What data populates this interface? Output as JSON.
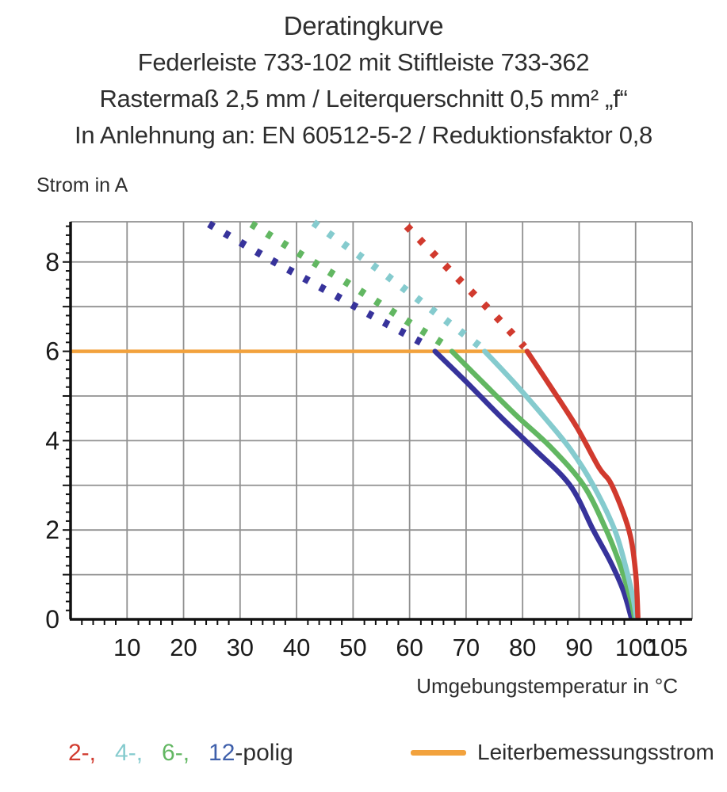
{
  "title": {
    "line1": "Deratingkurve",
    "line2": "Federleiste 733-102 mit Stiftleiste 733-362",
    "line3": "Rastermaß 2,5 mm / Leiterquerschnitt 0,5 mm² „f“",
    "line4": "In Anlehnung an: EN 60512-5-2 / Reduktionsfaktor 0,8"
  },
  "chart_data": {
    "type": "line",
    "title": "Deratingkurve",
    "xlabel": "Umgebungstemperatur in °C",
    "ylabel": "Strom in A",
    "xlim": [
      0,
      110
    ],
    "ylim": [
      0,
      8.9
    ],
    "grid": true,
    "x_grid_step": 10,
    "y_grid_step": 1,
    "x_minor_tick_step": 2,
    "y_minor_tick_step": 0.2,
    "x_tick_labels": [
      {
        "value": 10,
        "label": "10"
      },
      {
        "value": 20,
        "label": "20"
      },
      {
        "value": 30,
        "label": "30"
      },
      {
        "value": 40,
        "label": "40"
      },
      {
        "value": 50,
        "label": "50"
      },
      {
        "value": 60,
        "label": "60"
      },
      {
        "value": 70,
        "label": "70"
      },
      {
        "value": 80,
        "label": "80"
      },
      {
        "value": 90,
        "label": "90"
      },
      {
        "value": 100,
        "label": "100"
      },
      {
        "value": 105.6,
        "label": "105"
      }
    ],
    "y_tick_labels": [
      {
        "value": 0,
        "label": "0"
      },
      {
        "value": 2,
        "label": "2"
      },
      {
        "value": 4,
        "label": "4"
      },
      {
        "value": 6,
        "label": "6"
      },
      {
        "value": 8,
        "label": "8"
      }
    ],
    "reference_line": {
      "label": "Leiterbemessungsstrom",
      "y": 6,
      "x_start": 0,
      "x_end": 80.5,
      "color": "#f2a23d"
    },
    "series": [
      {
        "name": "12-polig",
        "color": "#37339b",
        "dashed": [
          [
            24.5,
            8.85
          ],
          [
            34,
            8.15
          ],
          [
            44,
            7.45
          ],
          [
            54,
            6.75
          ],
          [
            63.8,
            6.08
          ]
        ],
        "solid": [
          [
            64.5,
            6.0
          ],
          [
            70,
            5.32
          ],
          [
            76,
            4.55
          ],
          [
            82,
            3.82
          ],
          [
            88.4,
            3.0
          ],
          [
            92.5,
            2.0
          ],
          [
            95.5,
            1.3
          ],
          [
            97.8,
            0.65
          ],
          [
            99.2,
            0.05
          ]
        ]
      },
      {
        "name": "6-polig",
        "color": "#62b762",
        "dashed": [
          [
            32,
            8.85
          ],
          [
            41,
            8.15
          ],
          [
            50,
            7.45
          ],
          [
            59,
            6.72
          ],
          [
            67,
            6.08
          ]
        ],
        "solid": [
          [
            67.5,
            6.0
          ],
          [
            73,
            5.3
          ],
          [
            79,
            4.55
          ],
          [
            85,
            3.85
          ],
          [
            90.8,
            3.0
          ],
          [
            94.8,
            2.0
          ],
          [
            97.3,
            1.2
          ],
          [
            99,
            0.5
          ],
          [
            99.8,
            0.05
          ]
        ]
      },
      {
        "name": "4-polig",
        "color": "#85cbce",
        "dashed": [
          [
            43,
            8.88
          ],
          [
            50.5,
            8.2
          ],
          [
            58,
            7.5
          ],
          [
            65.5,
            6.78
          ],
          [
            72.8,
            6.08
          ]
        ],
        "solid": [
          [
            73.3,
            6.0
          ],
          [
            78.5,
            5.3
          ],
          [
            84,
            4.5
          ],
          [
            88.5,
            3.8
          ],
          [
            92.5,
            3.0
          ],
          [
            96.3,
            2.0
          ],
          [
            98.3,
            1.15
          ],
          [
            99.6,
            0.45
          ],
          [
            100.1,
            0.05
          ]
        ]
      },
      {
        "name": "2-polig",
        "color": "#d13a2e",
        "dashed": [
          [
            59.5,
            8.8
          ],
          [
            64.5,
            8.15
          ],
          [
            70,
            7.45
          ],
          [
            75.3,
            6.78
          ],
          [
            80.3,
            6.1
          ]
        ],
        "solid": [
          [
            80.8,
            6.0
          ],
          [
            85,
            5.2
          ],
          [
            89.6,
            4.3
          ],
          [
            93.5,
            3.4
          ],
          [
            95.8,
            3.0
          ],
          [
            98.8,
            2.0
          ],
          [
            100,
            1.05
          ],
          [
            100.4,
            0.05
          ]
        ]
      }
    ],
    "legend_position": "bottom"
  },
  "labels": {
    "y_axis_title": "Strom in A",
    "x_axis_title": "Umgebungstemperatur in °C"
  },
  "legend": {
    "poles": {
      "items": [
        {
          "label": "2-,",
          "color": "#d13a2e"
        },
        {
          "label": "4-,",
          "color": "#85cbce"
        },
        {
          "label": "6-,",
          "color": "#62b762"
        },
        {
          "label": "12",
          "color": "#3f60ab"
        }
      ],
      "suffix": "-polig",
      "suffix_color": "#2d2d2d"
    },
    "reference": {
      "label": "Leiterbemessungsstrom",
      "swatch_color": "#f2a23d"
    }
  }
}
